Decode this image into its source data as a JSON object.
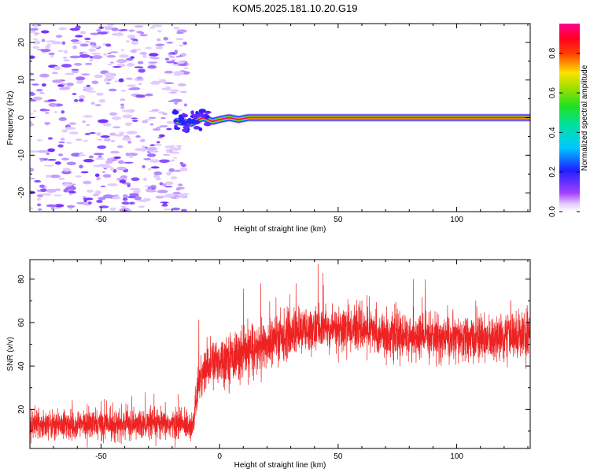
{
  "title": "KOM5.2025.181.10.20.G19",
  "chart_data": [
    {
      "type": "heatmap",
      "title": "KOM5.2025.181.10.20.G19",
      "xlabel": "Height of straight line (km)",
      "ylabel": "Frequency (Hz)",
      "xlim": [
        -80,
        131
      ],
      "ylim": [
        -25,
        25
      ],
      "xticks": [
        -50,
        0,
        50,
        100
      ],
      "yticks": [
        -20,
        -10,
        0,
        10,
        20
      ],
      "colorbar": {
        "label": "Normalized spectral amplitude",
        "range": [
          0,
          0.95
        ],
        "ticks": [
          0.0,
          0.2,
          0.4,
          0.6,
          0.8
        ],
        "colormap": "rainbow (violet-blue-cyan-green-yellow-red-magenta)"
      },
      "description_points": {
        "noise_region_x": [
          -80,
          -14
        ],
        "signal_start_x": -19,
        "signal_track": [
          {
            "x": -18,
            "f": -1.0
          },
          {
            "x": -12,
            "f": -1.5
          },
          {
            "x": -7,
            "f": 0.0
          },
          {
            "x": -3,
            "f": -1.0
          },
          {
            "x": 0,
            "f": -0.5
          },
          {
            "x": 4,
            "f": 0.0
          },
          {
            "x": 8,
            "f": -0.5
          },
          {
            "x": 12,
            "f": 0.0
          },
          {
            "x": 20,
            "f": 0.0
          },
          {
            "x": 131,
            "f": 0.0
          }
        ]
      }
    },
    {
      "type": "line",
      "xlabel": "Height of straight line (km)",
      "ylabel": "SNR (v/v)",
      "xlim": [
        -80,
        131
      ],
      "ylim": [
        2,
        89
      ],
      "xticks": [
        -50,
        0,
        50,
        100
      ],
      "yticks": [
        20,
        40,
        60,
        80
      ],
      "color": "#ee2222",
      "trend": [
        {
          "x": -80,
          "mean": 13,
          "spread": 6
        },
        {
          "x": -11,
          "mean": 13,
          "spread": 6
        },
        {
          "x": -9,
          "mean": 32,
          "spread": 9
        },
        {
          "x": -5,
          "mean": 40,
          "spread": 10
        },
        {
          "x": 0,
          "mean": 43,
          "spread": 10
        },
        {
          "x": 10,
          "mean": 45,
          "spread": 10
        },
        {
          "x": 20,
          "mean": 50,
          "spread": 10
        },
        {
          "x": 30,
          "mean": 55,
          "spread": 10
        },
        {
          "x": 40,
          "mean": 57,
          "spread": 9
        },
        {
          "x": 60,
          "mean": 57,
          "spread": 9
        },
        {
          "x": 70,
          "mean": 54,
          "spread": 9
        },
        {
          "x": 90,
          "mean": 53,
          "spread": 9
        },
        {
          "x": 110,
          "mean": 52,
          "spread": 9
        },
        {
          "x": 131,
          "mean": 55,
          "spread": 10
        }
      ]
    }
  ]
}
